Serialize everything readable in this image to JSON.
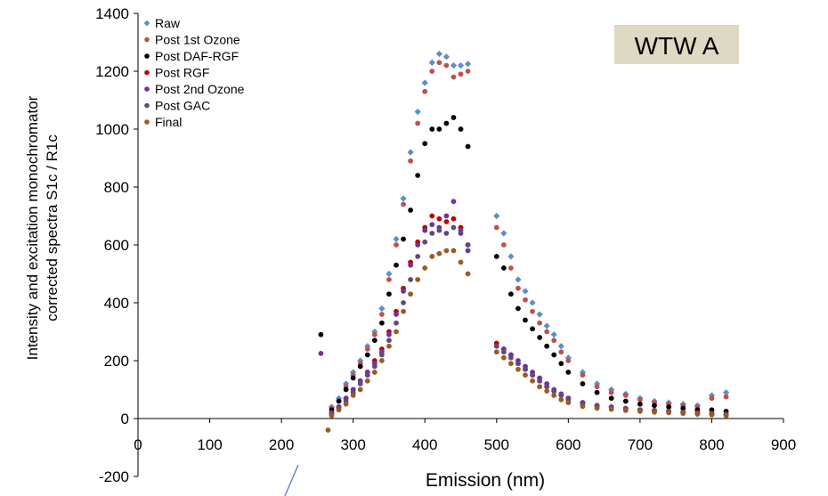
{
  "chart_data": {
    "type": "scatter",
    "title": "",
    "badge": "WTW A",
    "xlabel": "Emission (nm)",
    "ylabel_lines": [
      "Intensity and excitation monochromator",
      "corrected spectra S1c / R1c"
    ],
    "xlim": [
      0,
      900
    ],
    "ylim": [
      -200,
      1400
    ],
    "xticks": [
      "0",
      "100",
      "200",
      "300",
      "400",
      "500",
      "600",
      "700",
      "800",
      "900"
    ],
    "yticks": [
      "-200",
      "0",
      "200",
      "400",
      "600",
      "800",
      "1000",
      "1200",
      "1400"
    ],
    "grid": false,
    "legend_position": "top-left",
    "series": [
      {
        "name": "Raw",
        "color": "#5b8fc9",
        "marker": "diamond",
        "x": [
          270,
          280,
          290,
          300,
          310,
          320,
          330,
          340,
          350,
          360,
          370,
          380,
          390,
          400,
          410,
          420,
          430,
          440,
          450,
          460,
          500,
          510,
          520,
          530,
          540,
          550,
          560,
          570,
          580,
          590,
          600,
          620,
          640,
          660,
          680,
          700,
          720,
          740,
          760,
          780,
          800,
          820
        ],
        "y": [
          40,
          70,
          120,
          160,
          200,
          250,
          300,
          380,
          500,
          620,
          760,
          920,
          1060,
          1160,
          1230,
          1260,
          1250,
          1220,
          1220,
          1225,
          700,
          640,
          560,
          480,
          440,
          400,
          360,
          320,
          290,
          250,
          210,
          160,
          120,
          100,
          85,
          70,
          60,
          55,
          50,
          45,
          80,
          90
        ]
      },
      {
        "name": "Post 1st Ozone",
        "color": "#c0504d",
        "marker": "circle",
        "x": [
          270,
          280,
          290,
          300,
          310,
          320,
          330,
          340,
          350,
          360,
          370,
          380,
          390,
          400,
          410,
          420,
          430,
          440,
          450,
          460,
          500,
          510,
          520,
          530,
          540,
          550,
          560,
          570,
          580,
          590,
          600,
          620,
          640,
          660,
          680,
          700,
          720,
          740,
          760,
          780,
          800,
          820
        ],
        "y": [
          35,
          60,
          110,
          150,
          190,
          240,
          290,
          360,
          480,
          600,
          740,
          890,
          1020,
          1130,
          1200,
          1230,
          1220,
          1180,
          1190,
          1200,
          660,
          600,
          520,
          450,
          410,
          370,
          330,
          300,
          270,
          230,
          200,
          150,
          110,
          90,
          80,
          65,
          55,
          50,
          45,
          40,
          70,
          75
        ]
      },
      {
        "name": "Post DAF-RGF",
        "color": "#000000",
        "marker": "circle",
        "x": [
          255,
          270,
          280,
          290,
          300,
          310,
          320,
          330,
          340,
          350,
          360,
          370,
          380,
          390,
          400,
          410,
          420,
          430,
          440,
          450,
          460,
          500,
          510,
          520,
          530,
          540,
          550,
          560,
          570,
          580,
          590,
          600,
          620,
          640,
          660,
          680,
          700,
          720,
          740,
          760,
          780,
          800,
          820
        ],
        "y": [
          290,
          30,
          60,
          100,
          140,
          180,
          220,
          270,
          330,
          430,
          530,
          620,
          720,
          840,
          950,
          1000,
          1000,
          1020,
          1040,
          1000,
          940,
          560,
          520,
          430,
          380,
          340,
          310,
          280,
          250,
          220,
          190,
          160,
          120,
          90,
          70,
          60,
          50,
          45,
          40,
          35,
          30,
          30,
          25
        ]
      },
      {
        "name": "Post RGF",
        "color": "#c00000",
        "marker": "circle",
        "x": [
          270,
          280,
          290,
          300,
          310,
          320,
          330,
          340,
          350,
          360,
          370,
          380,
          390,
          400,
          410,
          420,
          430,
          440,
          450,
          460,
          500,
          510,
          520,
          530,
          540,
          550,
          560,
          570,
          580,
          590,
          600,
          620,
          640,
          660,
          680,
          700,
          720,
          740,
          760,
          780,
          800,
          820
        ],
        "y": [
          20,
          40,
          70,
          100,
          130,
          160,
          200,
          240,
          300,
          370,
          450,
          540,
          610,
          660,
          700,
          690,
          680,
          690,
          660,
          600,
          260,
          240,
          220,
          190,
          170,
          150,
          130,
          110,
          95,
          80,
          70,
          55,
          45,
          40,
          35,
          30,
          28,
          25,
          22,
          20,
          18,
          15
        ]
      },
      {
        "name": "Post 2nd Ozone",
        "color": "#7030a0",
        "marker": "circle",
        "x": [
          255,
          270,
          280,
          290,
          300,
          310,
          320,
          330,
          340,
          350,
          360,
          370,
          380,
          390,
          400,
          410,
          420,
          430,
          440,
          450,
          460,
          500,
          510,
          520,
          530,
          540,
          550,
          560,
          570,
          580,
          590,
          600,
          620,
          640,
          660,
          680,
          700,
          720,
          740,
          760,
          780,
          800,
          820
        ],
        "y": [
          225,
          20,
          40,
          70,
          100,
          130,
          160,
          190,
          230,
          290,
          360,
          440,
          530,
          600,
          650,
          670,
          660,
          700,
          750,
          640,
          580,
          250,
          240,
          220,
          200,
          180,
          160,
          140,
          120,
          100,
          85,
          70,
          55,
          45,
          40,
          35,
          30,
          28,
          25,
          22,
          20,
          18,
          15
        ]
      },
      {
        "name": "Post GAC",
        "color": "#604a7b",
        "marker": "circle",
        "x": [
          270,
          280,
          290,
          300,
          310,
          320,
          330,
          340,
          350,
          360,
          370,
          380,
          390,
          400,
          410,
          420,
          430,
          440,
          450,
          460,
          500,
          510,
          520,
          530,
          540,
          550,
          560,
          570,
          580,
          590,
          600,
          620,
          640,
          660,
          680,
          700,
          720,
          740,
          760,
          780,
          800,
          820
        ],
        "y": [
          15,
          35,
          60,
          90,
          120,
          150,
          180,
          220,
          270,
          330,
          400,
          480,
          560,
          610,
          640,
          650,
          640,
          660,
          650,
          600,
          250,
          230,
          210,
          190,
          170,
          150,
          130,
          110,
          95,
          80,
          65,
          50,
          42,
          38,
          33,
          30,
          27,
          24,
          21,
          18,
          16,
          14
        ]
      },
      {
        "name": "Final",
        "color": "#9c5a1e",
        "marker": "circle",
        "x": [
          265,
          270,
          280,
          290,
          300,
          310,
          320,
          330,
          340,
          350,
          360,
          370,
          380,
          390,
          400,
          410,
          420,
          430,
          440,
          450,
          460,
          500,
          510,
          520,
          530,
          540,
          550,
          560,
          570,
          580,
          590,
          600,
          620,
          640,
          660,
          680,
          700,
          720,
          740,
          760,
          780,
          800,
          820
        ],
        "y": [
          -40,
          10,
          30,
          50,
          80,
          100,
          130,
          160,
          200,
          250,
          300,
          370,
          430,
          480,
          520,
          560,
          570,
          580,
          580,
          540,
          500,
          230,
          210,
          190,
          170,
          150,
          130,
          110,
          95,
          80,
          65,
          55,
          42,
          36,
          32,
          28,
          25,
          22,
          20,
          18,
          15,
          13,
          10
        ]
      }
    ]
  }
}
